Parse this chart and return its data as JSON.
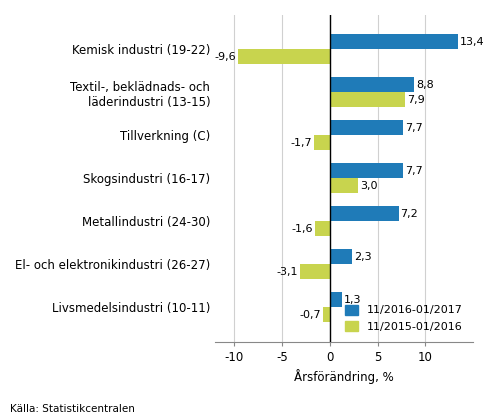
{
  "categories": [
    "Livsmedelsindustri (10-11)",
    "El- och elektronikindustri (26-27)",
    "Metallindustri (24-30)",
    "Skogsindustri (16-17)",
    "Tillverkning (C)",
    "Textil-, beklädnads- och\nläderindustri (13-15)",
    "Kemisk industri (19-22)"
  ],
  "series1_values": [
    1.3,
    2.3,
    7.2,
    7.7,
    7.7,
    8.8,
    13.4
  ],
  "series2_values": [
    -0.7,
    -3.1,
    -1.6,
    3.0,
    -1.7,
    7.9,
    -9.6
  ],
  "series1_label": "11/2016-01/2017",
  "series2_label": "11/2015-01/2016",
  "series1_color": "#1f7bb8",
  "series2_color": "#c8d44e",
  "xlabel": "Årsförändring, %",
  "source": "Källa: Statistikcentralen",
  "xlim": [
    -12,
    15
  ],
  "xticks": [
    -10,
    -5,
    0,
    5,
    10
  ],
  "bar_height": 0.35,
  "background_color": "#ffffff",
  "grid_color": "#d0d0d0",
  "text_color": "#000000",
  "fontsize": 8.5,
  "label_fontsize": 8
}
